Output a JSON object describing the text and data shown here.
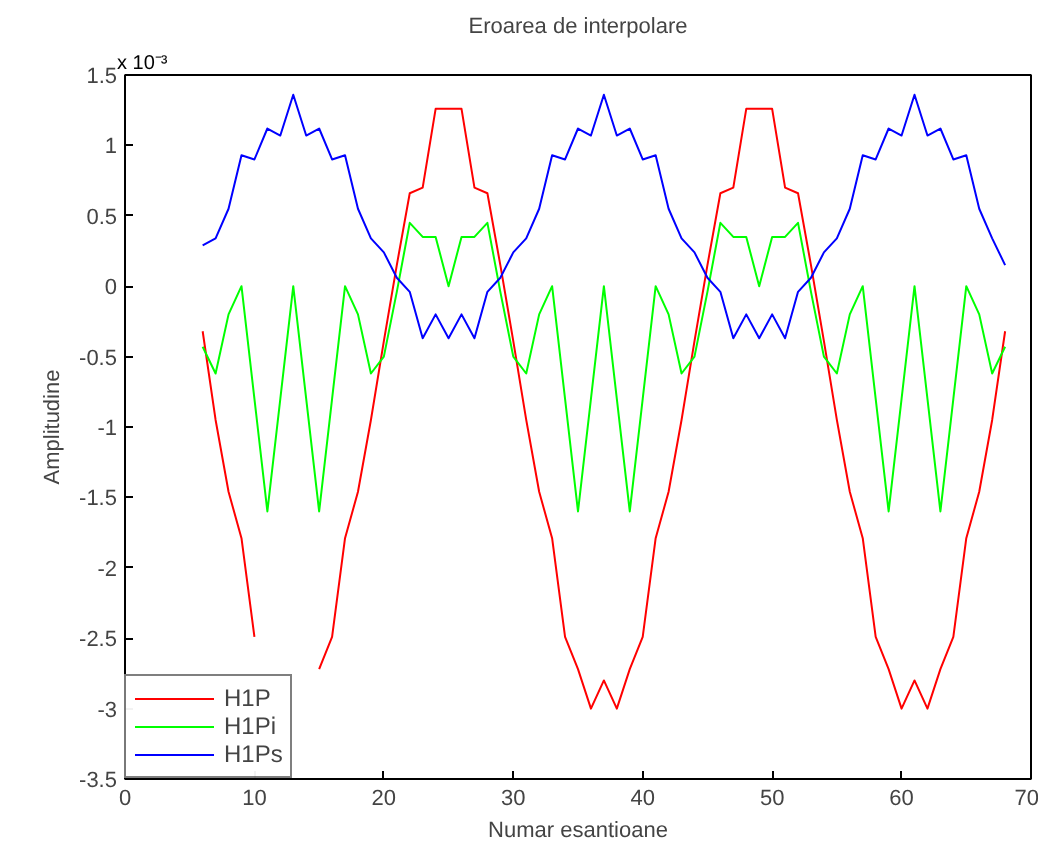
{
  "chart_data": {
    "type": "line",
    "title": "Eroarea de interpolare",
    "xlabel": "Numar esantioane",
    "ylabel": "Amplitudine",
    "annotations": [
      "x 10⁻³"
    ],
    "x": [
      6,
      7,
      8,
      9,
      10,
      11,
      12,
      13,
      14,
      15,
      16,
      17,
      18,
      19,
      20,
      21,
      22,
      23,
      24,
      25,
      26,
      27,
      28,
      29,
      30,
      31,
      32,
      33,
      34,
      35,
      36,
      37,
      38,
      39,
      40,
      41,
      42,
      43,
      44,
      45,
      46,
      47,
      48,
      49,
      50,
      51,
      52,
      53,
      54,
      55,
      56,
      57,
      58,
      59,
      60,
      61,
      62,
      63,
      64,
      65,
      66,
      67,
      68
    ],
    "series": [
      {
        "name": "H1P",
        "color": "#ff0000",
        "values": [
          -0.32,
          -0.95,
          -1.46,
          -1.79,
          -2.49,
          null,
          null,
          null,
          null,
          -2.72,
          -2.49,
          -1.79,
          -1.46,
          -0.95,
          -0.39,
          0.15,
          0.66,
          0.7,
          1.26,
          1.26,
          1.26,
          0.7,
          0.66,
          0.15,
          -0.39,
          -0.95,
          -1.46,
          -1.79,
          -2.49,
          -2.72,
          -3.0,
          -2.8,
          -3.0,
          -2.72,
          -2.49,
          -1.79,
          -1.46,
          -0.95,
          -0.39,
          0.15,
          0.66,
          0.7,
          1.26,
          1.26,
          1.26,
          0.7,
          0.66,
          0.15,
          -0.39,
          -0.95,
          -1.46,
          -1.79,
          -2.49,
          -2.72,
          -3.0,
          -2.8,
          -3.0,
          -2.72,
          -2.49,
          -1.79,
          -1.46,
          -0.95,
          -0.32
        ]
      },
      {
        "name": "H1Pi",
        "color": "#00ff00",
        "values": [
          -0.43,
          -0.62,
          -0.2,
          0,
          -0.8,
          -1.6,
          -0.8,
          0,
          -0.8,
          -1.6,
          -0.8,
          0,
          -0.2,
          -0.62,
          -0.5,
          -0.04,
          0.45,
          0.35,
          0.35,
          0,
          0.35,
          0.35,
          0.45,
          -0.04,
          -0.5,
          -0.62,
          -0.2,
          0,
          -0.8,
          -1.6,
          -0.8,
          0,
          -0.8,
          -1.6,
          -0.8,
          0,
          -0.2,
          -0.62,
          -0.5,
          -0.04,
          0.45,
          0.35,
          0.35,
          0,
          0.35,
          0.35,
          0.45,
          -0.04,
          -0.5,
          -0.62,
          -0.2,
          0,
          -0.8,
          -1.6,
          -0.8,
          0,
          -0.8,
          -1.6,
          -0.8,
          0,
          -0.2,
          -0.62,
          -0.43
        ]
      },
      {
        "name": "H1Ps",
        "color": "#0000ff",
        "values": [
          0.29,
          0.34,
          0.55,
          0.93,
          0.9,
          1.12,
          1.07,
          1.36,
          1.07,
          1.12,
          0.9,
          0.93,
          0.55,
          0.34,
          0.24,
          0.06,
          -0.04,
          -0.37,
          -0.2,
          -0.37,
          -0.2,
          -0.37,
          -0.04,
          0.06,
          0.24,
          0.34,
          0.55,
          0.93,
          0.9,
          1.12,
          1.07,
          1.36,
          1.07,
          1.12,
          0.9,
          0.93,
          0.55,
          0.34,
          0.24,
          0.06,
          -0.04,
          -0.37,
          -0.2,
          -0.37,
          -0.2,
          -0.37,
          -0.04,
          0.06,
          0.24,
          0.34,
          0.55,
          0.93,
          0.9,
          1.12,
          1.07,
          1.36,
          1.07,
          1.12,
          0.9,
          0.93,
          0.55,
          0.34,
          0.15
        ]
      }
    ],
    "xlim": [
      0,
      70
    ],
    "xticks": [
      0,
      10,
      20,
      30,
      40,
      50,
      60,
      70
    ],
    "ylim": [
      -3.5,
      1.5
    ],
    "yticks": [
      -3.5,
      -3,
      -2.5,
      -2,
      -1.5,
      -1,
      -0.5,
      0,
      0.5,
      1,
      1.5
    ],
    "grid": false,
    "legend": "bottom left",
    "marker": "none",
    "line_style": "solid"
  }
}
